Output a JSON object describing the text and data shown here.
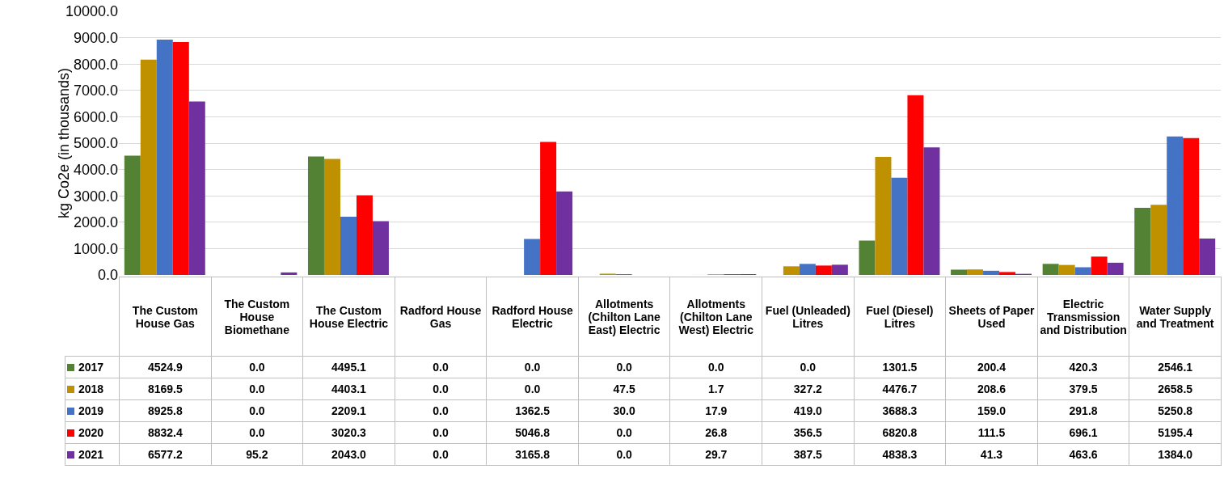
{
  "chart_data": {
    "type": "bar",
    "ylabel": "kg Co2e (in thousands)",
    "categories": [
      "The Custom House Gas",
      "The Custom House Biomethane",
      "The Custom House Electric",
      "Radford House Gas",
      "Radford House Electric",
      "Allotments (Chilton Lane East) Electric",
      "Allotments (Chilton Lane West) Electric",
      "Fuel (Unleaded) Litres",
      "Fuel (Diesel) Litres",
      "Sheets of Paper Used",
      "Electric Transmission and Distribution",
      "Water Supply and Treatment"
    ],
    "series": [
      {
        "name": "2017",
        "color": "#548235",
        "values": [
          4524.9,
          0,
          4495.1,
          0,
          0,
          0,
          0,
          0,
          1301.5,
          200.4,
          420.3,
          2546.1
        ],
        "value_labels": [
          "4524.9",
          "0.0",
          "4495.1",
          "0.0",
          "0.0",
          "0.0",
          "0.0",
          "0.0",
          "1301.5",
          "200.4",
          "420.3",
          "2546.1"
        ]
      },
      {
        "name": "2018",
        "color": "#bf9000",
        "values": [
          8169.5,
          0,
          4403.1,
          0,
          0,
          47.5,
          1.7,
          327.2,
          4476.7,
          208.6,
          379.5,
          2658.5
        ],
        "value_labels": [
          "8169.5",
          "0.0",
          "4403.1",
          "0.0",
          "0.0",
          "47.5",
          "1.7",
          "327.2",
          "4476.7",
          "208.6",
          "379.5",
          "2658.5"
        ]
      },
      {
        "name": "2019",
        "color": "#4472c4",
        "values": [
          8925.8,
          0,
          2209.1,
          0,
          1362.5,
          30,
          17.9,
          419,
          3688.3,
          159,
          291.8,
          5250.8
        ],
        "value_labels": [
          "8925.8",
          "0.0",
          "2209.1",
          "0.0",
          "1362.5",
          "30.0",
          "17.9",
          "419.0",
          "3688.3",
          "159.0",
          "291.8",
          "5250.8"
        ]
      },
      {
        "name": "2020",
        "color": "#ff0000",
        "values": [
          8832.4,
          0,
          3020.3,
          0,
          5046.8,
          0,
          26.8,
          356.5,
          6820.8,
          111.5,
          696.1,
          5195.4
        ],
        "value_labels": [
          "8832.4",
          "0.0",
          "3020.3",
          "0.0",
          "5046.8",
          "0.0",
          "26.8",
          "356.5",
          "6820.8",
          "111.5",
          "696.1",
          "5195.4"
        ]
      },
      {
        "name": "2021",
        "color": "#7030a0",
        "values": [
          6577.2,
          95.2,
          2043,
          0,
          3165.8,
          0,
          29.7,
          387.5,
          4838.3,
          41.3,
          463.6,
          1384
        ],
        "value_labels": [
          "6577.2",
          "95.2",
          "2043.0",
          "0.0",
          "3165.8",
          "0.0",
          "29.7",
          "387.5",
          "4838.3",
          "41.3",
          "463.6",
          "1384.0"
        ]
      }
    ],
    "ylim": [
      0,
      10000
    ],
    "yticks": [
      {
        "value": 0,
        "label": "0.0"
      },
      {
        "value": 1000,
        "label": "1000.0"
      },
      {
        "value": 2000,
        "label": "2000.0"
      },
      {
        "value": 3000,
        "label": "3000.0"
      },
      {
        "value": 4000,
        "label": "4000.0"
      },
      {
        "value": 5000,
        "label": "5000.0"
      },
      {
        "value": 6000,
        "label": "6000.0"
      },
      {
        "value": 7000,
        "label": "7000.0"
      },
      {
        "value": 8000,
        "label": "8000.0"
      },
      {
        "value": 9000,
        "label": "9000.0"
      },
      {
        "value": 10000,
        "label": "10000.0"
      }
    ],
    "grid": "y",
    "legend": "bottom"
  }
}
